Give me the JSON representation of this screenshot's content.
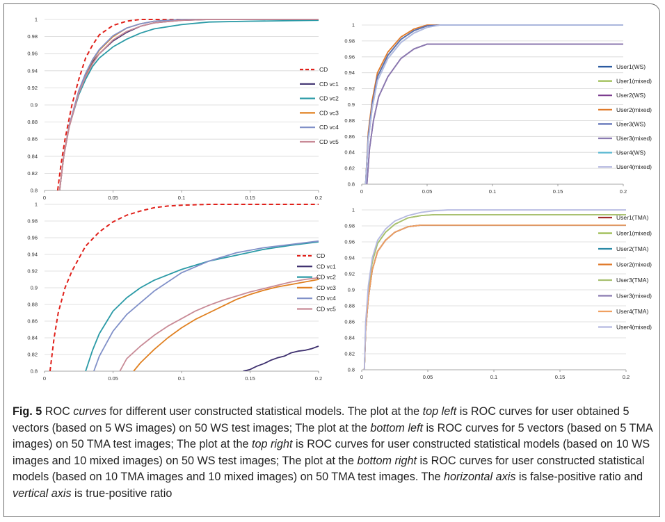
{
  "chart_data": [
    {
      "type": "line",
      "panel": "top-left",
      "x_ticks": [
        "0",
        "0.05",
        "0.1",
        "0.15",
        "0.2"
      ],
      "y_ticks": [
        "0.8",
        "0.82",
        "0.84",
        "0.86",
        "0.88",
        "0.9",
        "0.92",
        "0.94",
        "0.96",
        "0.98",
        "1"
      ],
      "xlim": [
        0,
        0.2
      ],
      "ylim": [
        0.8,
        1
      ],
      "grid": true,
      "legend_position": "right",
      "series": [
        {
          "name": "CD",
          "color": "#e0201a",
          "dash": true,
          "x": [
            0.0096,
            0.012,
            0.015,
            0.02,
            0.025,
            0.03,
            0.035,
            0.04,
            0.05,
            0.06,
            0.07,
            0.08,
            0.2
          ],
          "y": [
            0.8,
            0.83,
            0.86,
            0.9,
            0.93,
            0.955,
            0.97,
            0.982,
            0.993,
            0.998,
            1.0,
            1.0,
            1.0
          ]
        },
        {
          "name": "CD vc1",
          "color": "#3d2f6e",
          "x": [
            0.011,
            0.014,
            0.018,
            0.025,
            0.03,
            0.035,
            0.04,
            0.05,
            0.06,
            0.07,
            0.08,
            0.1,
            0.12,
            0.2
          ],
          "y": [
            0.8,
            0.84,
            0.875,
            0.915,
            0.935,
            0.95,
            0.96,
            0.975,
            0.985,
            0.992,
            0.996,
            0.999,
            1.0,
            1.0
          ]
        },
        {
          "name": "CD vc2",
          "color": "#2a9aa6",
          "x": [
            0.011,
            0.014,
            0.018,
            0.025,
            0.03,
            0.035,
            0.04,
            0.05,
            0.06,
            0.07,
            0.08,
            0.1,
            0.12,
            0.15,
            0.2
          ],
          "y": [
            0.8,
            0.84,
            0.875,
            0.912,
            0.93,
            0.945,
            0.955,
            0.968,
            0.977,
            0.984,
            0.989,
            0.994,
            0.997,
            0.998,
            0.999
          ]
        },
        {
          "name": "CD vc3",
          "color": "#e08020",
          "x": [
            0.011,
            0.014,
            0.018,
            0.025,
            0.03,
            0.035,
            0.04,
            0.05,
            0.06,
            0.07,
            0.08,
            0.1,
            0.12,
            0.2
          ],
          "y": [
            0.8,
            0.84,
            0.876,
            0.916,
            0.936,
            0.952,
            0.964,
            0.98,
            0.99,
            0.995,
            0.998,
            1.0,
            1.0,
            1.0
          ]
        },
        {
          "name": "CD vc4",
          "color": "#8090c8",
          "x": [
            0.011,
            0.014,
            0.018,
            0.025,
            0.03,
            0.035,
            0.04,
            0.05,
            0.06,
            0.07,
            0.08,
            0.1,
            0.12,
            0.2
          ],
          "y": [
            0.8,
            0.84,
            0.876,
            0.917,
            0.937,
            0.953,
            0.965,
            0.981,
            0.99,
            0.995,
            0.998,
            1.0,
            1.0,
            1.0
          ]
        },
        {
          "name": "CD vc5",
          "color": "#c88a96",
          "x": [
            0.011,
            0.014,
            0.018,
            0.025,
            0.03,
            0.035,
            0.04,
            0.05,
            0.06,
            0.07,
            0.08,
            0.1,
            0.12,
            0.2
          ],
          "y": [
            0.8,
            0.84,
            0.874,
            0.914,
            0.933,
            0.948,
            0.96,
            0.976,
            0.986,
            0.992,
            0.996,
            0.999,
            1.0,
            1.0
          ]
        }
      ]
    },
    {
      "type": "line",
      "panel": "top-right",
      "x_ticks": [
        "0",
        "0.05",
        "0.1",
        "0.15",
        "0.2"
      ],
      "y_ticks": [
        "0.8",
        "0.82",
        "0.84",
        "0.86",
        "0.88",
        "0.9",
        "0.92",
        "0.94",
        "0.96",
        "0.98",
        "1"
      ],
      "xlim": [
        0,
        0.2
      ],
      "ylim": [
        0.8,
        1
      ],
      "grid": true,
      "legend_position": "right",
      "series": [
        {
          "name": "User1(WS)",
          "color": "#2b5aa0",
          "x": [
            0.003,
            0.005,
            0.008,
            0.012,
            0.02,
            0.03,
            0.04,
            0.05,
            0.06,
            0.2
          ],
          "y": [
            0.8,
            0.86,
            0.9,
            0.935,
            0.962,
            0.982,
            0.993,
            0.999,
            1.0,
            1.0
          ]
        },
        {
          "name": "User1(mixed)",
          "color": "#9abb4e",
          "x": [
            0.003,
            0.005,
            0.008,
            0.012,
            0.02,
            0.03,
            0.04,
            0.05,
            0.06,
            0.2
          ],
          "y": [
            0.8,
            0.86,
            0.9,
            0.935,
            0.962,
            0.982,
            0.993,
            0.999,
            1.0,
            1.0
          ]
        },
        {
          "name": "User2(WS)",
          "color": "#7a3a8e",
          "x": [
            0.004,
            0.006,
            0.009,
            0.013,
            0.02,
            0.03,
            0.04,
            0.05,
            0.2
          ],
          "y": [
            0.8,
            0.845,
            0.88,
            0.91,
            0.935,
            0.958,
            0.97,
            0.976,
            0.976
          ]
        },
        {
          "name": "User2(mixed)",
          "color": "#e07a2a",
          "x": [
            0.003,
            0.005,
            0.008,
            0.012,
            0.02,
            0.03,
            0.04,
            0.05,
            0.055,
            0.2
          ],
          "y": [
            0.8,
            0.865,
            0.905,
            0.94,
            0.966,
            0.985,
            0.995,
            1.0,
            1.0,
            1.0
          ]
        },
        {
          "name": "User3(WS)",
          "color": "#5b6fb5",
          "x": [
            0.003,
            0.005,
            0.008,
            0.012,
            0.02,
            0.03,
            0.04,
            0.05,
            0.06,
            0.2
          ],
          "y": [
            0.8,
            0.86,
            0.9,
            0.935,
            0.962,
            0.982,
            0.993,
            0.999,
            1.0,
            1.0
          ]
        },
        {
          "name": "User3(mixed)",
          "color": "#8a7ab0",
          "x": [
            0.004,
            0.006,
            0.009,
            0.013,
            0.02,
            0.03,
            0.04,
            0.05,
            0.2
          ],
          "y": [
            0.8,
            0.845,
            0.88,
            0.91,
            0.935,
            0.958,
            0.97,
            0.976,
            0.976
          ]
        },
        {
          "name": "User4(WS)",
          "color": "#5bb8d2",
          "x": [
            0.003,
            0.005,
            0.008,
            0.012,
            0.02,
            0.03,
            0.04,
            0.05,
            0.06,
            0.2
          ],
          "y": [
            0.8,
            0.855,
            0.895,
            0.93,
            0.958,
            0.978,
            0.99,
            0.997,
            1.0,
            1.0
          ]
        },
        {
          "name": "User4(mixed)",
          "color": "#b4b8e0",
          "x": [
            0.003,
            0.005,
            0.008,
            0.012,
            0.02,
            0.03,
            0.04,
            0.05,
            0.06,
            0.2
          ],
          "y": [
            0.8,
            0.855,
            0.895,
            0.93,
            0.958,
            0.978,
            0.99,
            0.997,
            1.0,
            1.0
          ]
        }
      ]
    },
    {
      "type": "line",
      "panel": "bottom-left",
      "x_ticks": [
        "0",
        "0.05",
        "0.1",
        "0.15",
        "0.2"
      ],
      "y_ticks": [
        "0.8",
        "0.82",
        "0.84",
        "0.86",
        "0.88",
        "0.9",
        "0.92",
        "0.94",
        "0.96",
        "0.98",
        "1"
      ],
      "xlim": [
        0,
        0.2
      ],
      "ylim": [
        0.8,
        1
      ],
      "grid": true,
      "legend_position": "right",
      "series": [
        {
          "name": "CD",
          "color": "#e0201a",
          "dash": true,
          "x": [
            0.004,
            0.007,
            0.01,
            0.015,
            0.02,
            0.03,
            0.04,
            0.05,
            0.06,
            0.07,
            0.08,
            0.09,
            0.1,
            0.12,
            0.2
          ],
          "y": [
            0.8,
            0.84,
            0.87,
            0.9,
            0.92,
            0.95,
            0.967,
            0.979,
            0.987,
            0.992,
            0.996,
            0.998,
            0.999,
            1.0,
            1.0
          ]
        },
        {
          "name": "CD vc1",
          "color": "#3d2f6e",
          "x": [
            0.145,
            0.15,
            0.155,
            0.16,
            0.165,
            0.17,
            0.175,
            0.18,
            0.185,
            0.19,
            0.195,
            0.2
          ],
          "y": [
            0.8,
            0.802,
            0.806,
            0.809,
            0.813,
            0.816,
            0.818,
            0.822,
            0.824,
            0.825,
            0.827,
            0.83
          ]
        },
        {
          "name": "CD vc2",
          "color": "#2a9aa6",
          "x": [
            0.03,
            0.035,
            0.04,
            0.05,
            0.06,
            0.07,
            0.08,
            0.1,
            0.12,
            0.14,
            0.16,
            0.18,
            0.2
          ],
          "y": [
            0.8,
            0.825,
            0.845,
            0.872,
            0.888,
            0.9,
            0.909,
            0.922,
            0.932,
            0.939,
            0.946,
            0.951,
            0.955
          ]
        },
        {
          "name": "CD vc3",
          "color": "#e08020",
          "x": [
            0.065,
            0.07,
            0.08,
            0.09,
            0.1,
            0.11,
            0.12,
            0.13,
            0.14,
            0.15,
            0.16,
            0.17,
            0.18,
            0.19,
            0.2
          ],
          "y": [
            0.8,
            0.81,
            0.826,
            0.84,
            0.852,
            0.862,
            0.87,
            0.878,
            0.886,
            0.892,
            0.897,
            0.901,
            0.904,
            0.907,
            0.91
          ]
        },
        {
          "name": "CD vc4",
          "color": "#8090c8",
          "x": [
            0.036,
            0.04,
            0.045,
            0.05,
            0.06,
            0.07,
            0.08,
            0.1,
            0.12,
            0.14,
            0.16,
            0.18,
            0.2
          ],
          "y": [
            0.8,
            0.818,
            0.833,
            0.848,
            0.868,
            0.882,
            0.896,
            0.918,
            0.932,
            0.942,
            0.948,
            0.952,
            0.956
          ]
        },
        {
          "name": "CD vc5",
          "color": "#c88a96",
          "x": [
            0.055,
            0.06,
            0.07,
            0.08,
            0.09,
            0.1,
            0.11,
            0.12,
            0.13,
            0.14,
            0.15,
            0.16,
            0.17,
            0.18,
            0.19,
            0.2
          ],
          "y": [
            0.8,
            0.815,
            0.83,
            0.843,
            0.854,
            0.863,
            0.872,
            0.879,
            0.885,
            0.89,
            0.895,
            0.899,
            0.903,
            0.907,
            0.91,
            0.912
          ]
        }
      ]
    },
    {
      "type": "line",
      "panel": "bottom-right",
      "x_ticks": [
        "0",
        "0.05",
        "0.1",
        "0.15",
        "0.2"
      ],
      "y_ticks": [
        "0.8",
        "0.82",
        "0.84",
        "0.86",
        "0.88",
        "0.9",
        "0.92",
        "0.94",
        "0.96",
        "0.98",
        "1"
      ],
      "xlim": [
        0,
        0.2
      ],
      "ylim": [
        0.8,
        1
      ],
      "grid": true,
      "legend_position": "right",
      "series": [
        {
          "name": "User1(TMA)",
          "color": "#a02a2a",
          "x": [
            0.002,
            0.003,
            0.005,
            0.008,
            0.012,
            0.018,
            0.025,
            0.035,
            0.045,
            0.2
          ],
          "y": [
            0.8,
            0.85,
            0.89,
            0.925,
            0.948,
            0.962,
            0.972,
            0.979,
            0.981,
            0.981
          ]
        },
        {
          "name": "User1(mixed)",
          "color": "#9abb4e",
          "x": [
            0.002,
            0.003,
            0.005,
            0.008,
            0.012,
            0.018,
            0.025,
            0.035,
            0.045,
            0.055,
            0.2
          ],
          "y": [
            0.8,
            0.855,
            0.9,
            0.935,
            0.958,
            0.972,
            0.982,
            0.99,
            0.993,
            0.994,
            0.994
          ]
        },
        {
          "name": "User2(TMA)",
          "color": "#2a8aa6",
          "x": [
            0.002,
            0.003,
            0.005,
            0.008,
            0.012,
            0.018,
            0.025,
            0.035,
            0.045,
            0.2
          ],
          "y": [
            0.8,
            0.85,
            0.89,
            0.925,
            0.948,
            0.962,
            0.972,
            0.979,
            0.981,
            0.981
          ]
        },
        {
          "name": "User2(mixed)",
          "color": "#e07a2a",
          "x": [
            0.002,
            0.003,
            0.005,
            0.008,
            0.012,
            0.018,
            0.025,
            0.035,
            0.045,
            0.2
          ],
          "y": [
            0.8,
            0.85,
            0.89,
            0.925,
            0.948,
            0.962,
            0.972,
            0.979,
            0.981,
            0.981
          ]
        },
        {
          "name": "User3(TMA)",
          "color": "#a8c070",
          "x": [
            0.002,
            0.003,
            0.005,
            0.008,
            0.012,
            0.018,
            0.025,
            0.035,
            0.045,
            0.055,
            0.2
          ],
          "y": [
            0.8,
            0.855,
            0.9,
            0.935,
            0.958,
            0.972,
            0.982,
            0.99,
            0.993,
            0.994,
            0.994
          ]
        },
        {
          "name": "User3(mixed)",
          "color": "#8a7ab0",
          "x": [
            0.002,
            0.003,
            0.005,
            0.008,
            0.012,
            0.018,
            0.025,
            0.035,
            0.045,
            0.2
          ],
          "y": [
            0.8,
            0.85,
            0.89,
            0.925,
            0.948,
            0.962,
            0.972,
            0.979,
            0.981,
            0.981
          ]
        },
        {
          "name": "User4(TMA)",
          "color": "#f0a060",
          "x": [
            0.002,
            0.003,
            0.005,
            0.008,
            0.012,
            0.018,
            0.025,
            0.035,
            0.045,
            0.2
          ],
          "y": [
            0.8,
            0.85,
            0.89,
            0.925,
            0.948,
            0.962,
            0.972,
            0.979,
            0.981,
            0.981
          ]
        },
        {
          "name": "User4(mixed)",
          "color": "#b4b8e0",
          "x": [
            0.002,
            0.003,
            0.005,
            0.008,
            0.012,
            0.018,
            0.025,
            0.035,
            0.045,
            0.055,
            0.065,
            0.2
          ],
          "y": [
            0.8,
            0.86,
            0.905,
            0.94,
            0.962,
            0.976,
            0.986,
            0.993,
            0.997,
            0.999,
            1.0,
            1.0
          ]
        }
      ]
    }
  ],
  "caption": {
    "fig_label": "Fig. 5",
    "parts": [
      "ROC ",
      {
        "i": "curves"
      },
      " for different user constructed statistical models. The plot at the ",
      {
        "i": "top left"
      },
      " is ROC curves for user obtained 5 vectors (based on 5 WS images) on 50 WS test images; The plot at the ",
      {
        "i": "bottom left"
      },
      " is ROC curves for 5 vectors (based on 5 TMA images) on 50 TMA test images; The plot at the ",
      {
        "i": "top right"
      },
      " is ROC curves for user constructed statistical models (based on 10 WS images and 10 mixed images) on 50 WS test images; The plot at the ",
      {
        "i": "bottom right"
      },
      " is ROC curves for user constructed statistical models (based on 10 TMA images and 10 mixed images) on 50 TMA test images. The ",
      {
        "i": "horizontal axis"
      },
      " is false-positive ratio and ",
      {
        "i": "vertical axis"
      },
      " is true-positive ratio"
    ]
  }
}
